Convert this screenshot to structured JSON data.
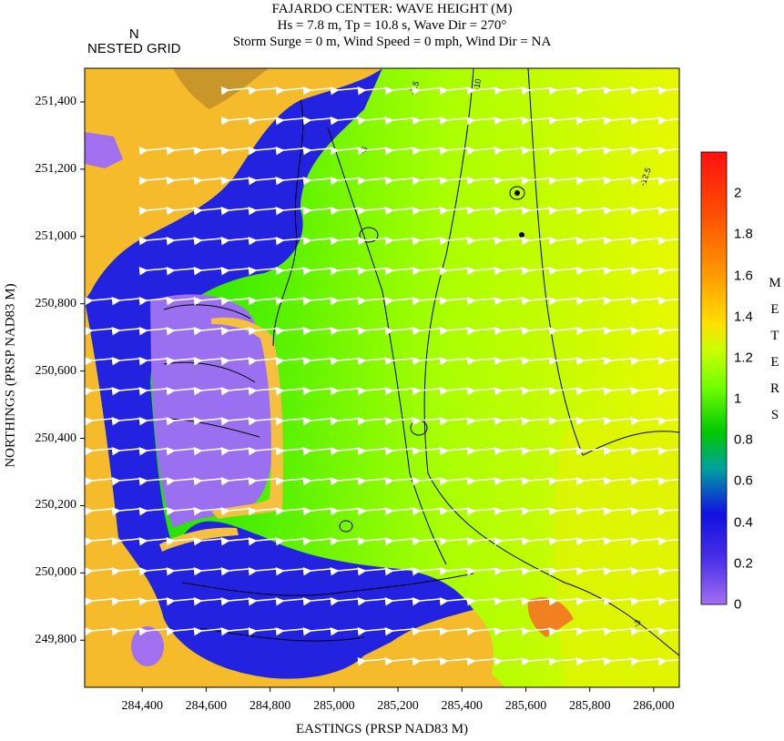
{
  "title": {
    "line1": "FAJARDO CENTER: WAVE HEIGHT (M)",
    "line2": "Hs = 7.8 m, Tp = 10.8 s, Wave Dir = 270°",
    "line3": "Storm Surge = 0 m, Wind Speed = 0 mph, Wind Dir = NA"
  },
  "north_label": "N",
  "grid_label": "NESTED GRID",
  "chart_data": {
    "type": "heatmap",
    "xlabel": "EASTINGS (PRSP NAD83 M)",
    "ylabel": "NORTHINGS (PRSP NAD83 M)",
    "xlim": [
      284220,
      286080
    ],
    "ylim": [
      249660,
      251500
    ],
    "x_ticks": [
      "284,400",
      "284,600",
      "284,800",
      "285,000",
      "285,200",
      "285,400",
      "285,600",
      "285,800",
      "286,000"
    ],
    "x_tick_values": [
      284400,
      284600,
      284800,
      285000,
      285200,
      285400,
      285600,
      285800,
      286000
    ],
    "y_ticks": [
      "251,400",
      "251,200",
      "251,000",
      "250,800",
      "250,600",
      "250,400",
      "250,200",
      "250,000",
      "249,800"
    ],
    "y_tick_values": [
      251400,
      251200,
      251000,
      250800,
      250600,
      250400,
      250200,
      250000,
      249800
    ],
    "colorbar": {
      "unit_letters": [
        "M",
        "E",
        "T",
        "E",
        "R",
        "S"
      ],
      "range": [
        0,
        2.2
      ],
      "tick_labels": [
        "2",
        "1.8",
        "1.6",
        "1.4",
        "1.2",
        "1",
        "0.8",
        "0.6",
        "0.4",
        "0.2",
        "0"
      ],
      "tick_values": [
        2,
        1.8,
        1.6,
        1.4,
        1.2,
        1,
        0.8,
        0.6,
        0.4,
        0.2,
        0
      ],
      "colors": [
        "#a070f0",
        "#2020e0",
        "#00c000",
        "#70ff00",
        "#e8ff00",
        "#ffb000",
        "#ff2000"
      ]
    },
    "contour_labels": [
      "-10",
      "-7.5",
      "-5",
      "-3",
      "-12.5"
    ],
    "land_color": "#f5bb2a",
    "hill_color": "#c9962a",
    "vector_color": "#ffffff",
    "wave_direction_deg": 270
  }
}
